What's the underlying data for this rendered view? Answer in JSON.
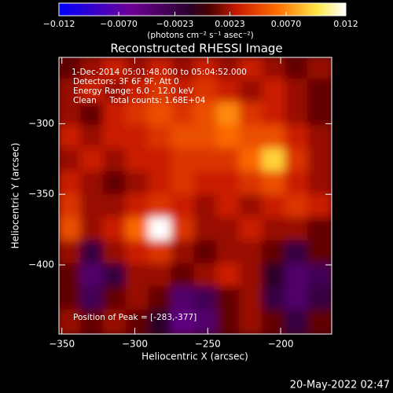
{
  "chart_data": {
    "type": "heatmap",
    "title": "Reconstructed RHESSI Image",
    "colorbar_label": "(photons cm⁻² s⁻¹ asec⁻²)",
    "xlabel": "Heliocentric X (arcsec)",
    "ylabel": "Heliocentric Y (arcsec)",
    "annotations": [
      "1-Dec-2014 05:01:48.000 to 05:04:52.000",
      "Detectors: 3F 6F 9F, Att 0",
      "Energy Range: 6.0 - 12.0 keV",
      "Clean     Total counts: 1.68E+04"
    ],
    "peak_label": "Position of Peak = [-283,-377]",
    "timestamp": "20-May-2022 02:47",
    "xlim": [
      -352,
      -165
    ],
    "ylim": [
      -449,
      -253
    ],
    "xticks": [
      {
        "value": -350,
        "label": "−350"
      },
      {
        "value": -300,
        "label": "−300"
      },
      {
        "value": -250,
        "label": "−250"
      },
      {
        "value": -200,
        "label": "−200"
      }
    ],
    "yticks": [
      {
        "value": -300,
        "label": "−300"
      },
      {
        "value": -350,
        "label": "−350"
      },
      {
        "value": -400,
        "label": "−400"
      }
    ],
    "zlim": [
      -0.012,
      0.012
    ],
    "zticks": [
      {
        "value": -0.012,
        "label": "−0.012"
      },
      {
        "value": -0.007,
        "label": "−0.0070"
      },
      {
        "value": -0.0023,
        "label": "−0.0023"
      },
      {
        "value": 0.0023,
        "label": "0.0023"
      },
      {
        "value": 0.007,
        "label": "0.0070"
      },
      {
        "value": 0.012,
        "label": "0.012"
      }
    ],
    "z": [
      [
        0.001,
        0.002,
        0.003,
        0.002,
        0.003,
        0.002,
        0.003,
        0.002,
        0.003,
        0.002,
        0.001,
        0.002
      ],
      [
        0.002,
        0.003,
        0.002,
        0.003,
        0.004,
        0.003,
        0.004,
        0.003,
        0.002,
        0.003,
        0.002,
        0.001
      ],
      [
        0.002,
        0.001,
        0.003,
        0.004,
        0.005,
        0.004,
        0.005,
        0.007,
        0.004,
        0.003,
        0.002,
        0.001
      ],
      [
        0.003,
        0.002,
        0.003,
        0.003,
        0.004,
        0.005,
        0.005,
        0.006,
        0.005,
        0.005,
        0.003,
        0.002
      ],
      [
        0.002,
        0.003,
        0.002,
        0.003,
        0.003,
        0.004,
        0.004,
        0.004,
        0.006,
        0.009,
        0.004,
        0.002
      ],
      [
        0.003,
        0.002,
        0.001,
        0.002,
        0.003,
        0.004,
        0.003,
        0.003,
        0.004,
        0.005,
        0.003,
        0.002
      ],
      [
        0.004,
        0.002,
        0.002,
        0.003,
        0.004,
        0.003,
        0.002,
        0.003,
        0.002,
        0.003,
        0.004,
        0.003
      ],
      [
        0.005,
        0.002,
        0.003,
        0.006,
        0.012,
        0.004,
        0.002,
        0.002,
        0.003,
        0.002,
        0.002,
        0.001
      ],
      [
        0.002,
        -0.002,
        0.002,
        0.003,
        0.004,
        0.002,
        0.001,
        0.002,
        0.002,
        0.001,
        -0.002,
        0.001
      ],
      [
        0.001,
        -0.004,
        -0.002,
        0.002,
        0.002,
        0.001,
        0.002,
        0.003,
        0.002,
        -0.001,
        -0.004,
        -0.003
      ],
      [
        0.001,
        -0.003,
        0.001,
        0.002,
        0.001,
        -0.004,
        -0.003,
        0.001,
        0.002,
        -0.002,
        -0.004,
        -0.002
      ],
      [
        0.002,
        0.001,
        0.002,
        0.001,
        -0.001,
        -0.005,
        -0.004,
        0.001,
        0.002,
        0.001,
        -0.002,
        0.001
      ]
    ]
  }
}
